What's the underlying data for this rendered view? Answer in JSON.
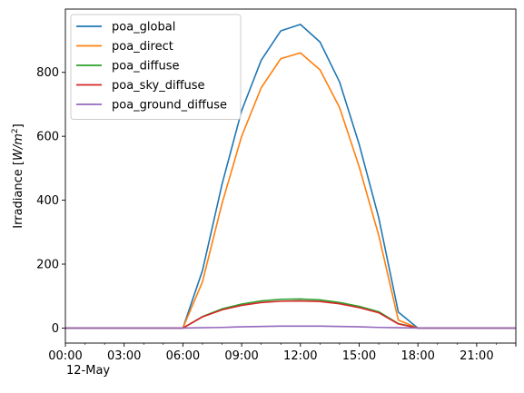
{
  "chart_data": {
    "type": "line",
    "title": "",
    "xlabel": "",
    "ylabel": "Irradiance [W/m²]",
    "x_ticks": [
      "00:00",
      "03:00",
      "06:00",
      "09:00",
      "12:00",
      "15:00",
      "18:00",
      "21:00"
    ],
    "x_tick_hours": [
      0,
      3,
      6,
      9,
      12,
      15,
      18,
      21
    ],
    "x_sublabel": "12-May",
    "x_range_hours": [
      0,
      23
    ],
    "y_ticks": [
      0,
      200,
      400,
      600,
      800
    ],
    "ylim": [
      -47,
      998
    ],
    "legend_position": "top-left",
    "grid": false,
    "x_hours": [
      0,
      1,
      2,
      3,
      4,
      5,
      6,
      7,
      8,
      9,
      10,
      11,
      12,
      13,
      14,
      15,
      16,
      17,
      18,
      19,
      20,
      21,
      22,
      23
    ],
    "series": [
      {
        "name": "poa_global",
        "color": "#1f77b4",
        "values": [
          0,
          0,
          0,
          0,
          0,
          0,
          0,
          180,
          450,
          680,
          838,
          930,
          950,
          895,
          770,
          575,
          345,
          50,
          0,
          0,
          0,
          0,
          0,
          0
        ]
      },
      {
        "name": "poa_direct",
        "color": "#ff7f0e",
        "values": [
          0,
          0,
          0,
          0,
          0,
          0,
          0,
          145,
          390,
          600,
          752,
          843,
          861,
          808,
          690,
          505,
          290,
          25,
          0,
          0,
          0,
          0,
          0,
          0
        ]
      },
      {
        "name": "poa_diffuse",
        "color": "#2ca02c",
        "values": [
          0,
          0,
          0,
          0,
          0,
          0,
          0,
          36,
          60,
          75,
          85,
          90,
          91,
          88,
          80,
          68,
          51,
          14,
          0,
          0,
          0,
          0,
          0,
          0
        ]
      },
      {
        "name": "poa_sky_diffuse",
        "color": "#d62728",
        "values": [
          0,
          0,
          0,
          0,
          0,
          0,
          0,
          35,
          57,
          71,
          80,
          84,
          85,
          83,
          76,
          64,
          48,
          13,
          0,
          0,
          0,
          0,
          0,
          0
        ]
      },
      {
        "name": "poa_ground_diffuse",
        "color": "#9467bd",
        "values": [
          0,
          0,
          0,
          0,
          0,
          0,
          0,
          1,
          2,
          4,
          5,
          6,
          6,
          6,
          5,
          4,
          2,
          1,
          0,
          0,
          0,
          0,
          0,
          0
        ]
      }
    ]
  }
}
